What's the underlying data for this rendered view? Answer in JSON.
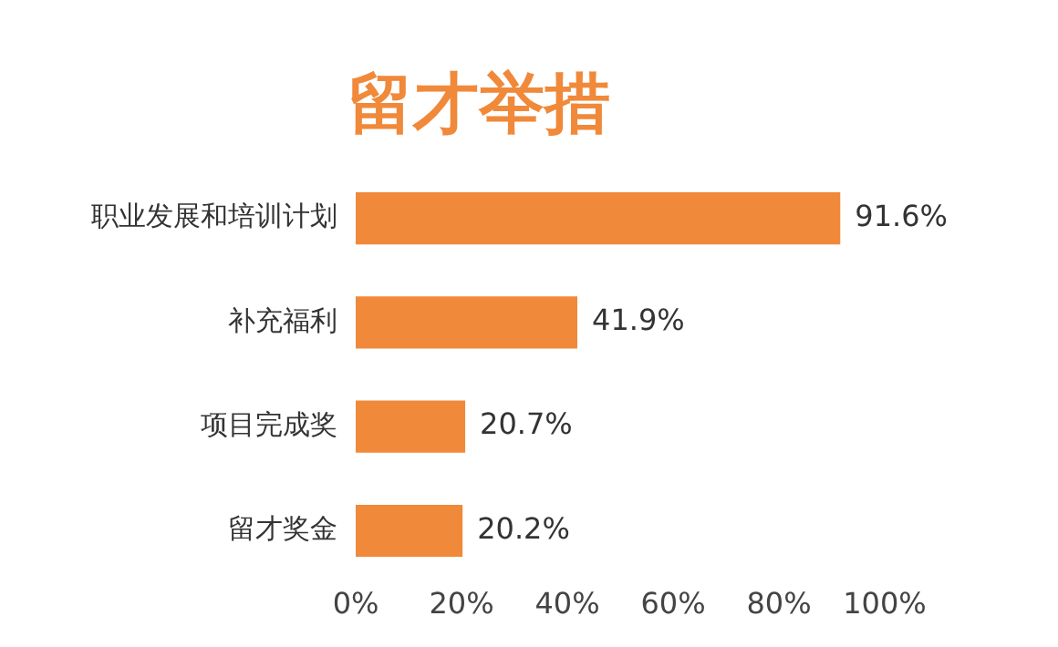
{
  "chart_data": {
    "type": "bar",
    "orientation": "horizontal",
    "title": "留才举措",
    "categories": [
      "职业发展和培训计划",
      "补充福利",
      "项目完成奖",
      "留才奖金"
    ],
    "values": [
      91.6,
      41.9,
      20.7,
      20.2
    ],
    "value_labels": [
      "91.6%",
      "41.9%",
      "20.7%",
      "20.2%"
    ],
    "color": "#f0893a",
    "xlim": [
      0,
      100
    ],
    "xticks": [
      {
        "value": 0,
        "label": "0%"
      },
      {
        "value": 20,
        "label": "20%"
      },
      {
        "value": 40,
        "label": "40%"
      },
      {
        "value": 60,
        "label": "60%"
      },
      {
        "value": 80,
        "label": "80%"
      },
      {
        "value": 100,
        "label": "100%"
      }
    ],
    "grid": false,
    "legend": false
  }
}
